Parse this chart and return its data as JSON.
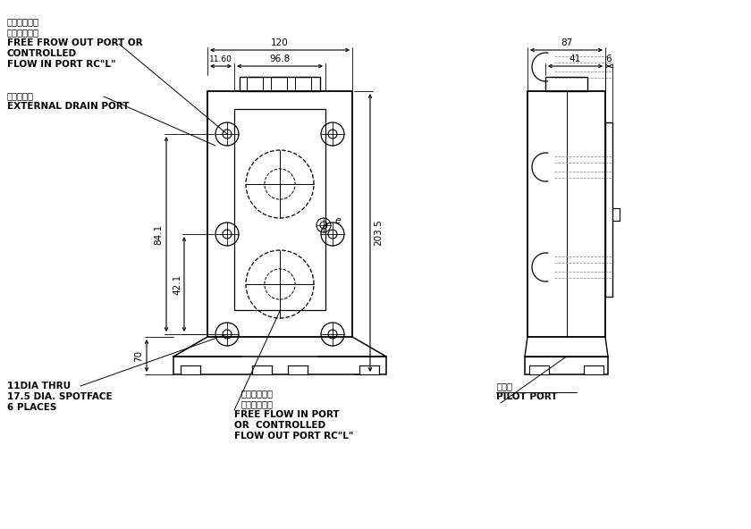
{
  "bg_color": "#ffffff",
  "line_color": "#000000",
  "fig_width": 8.4,
  "fig_height": 5.92,
  "dpi": 100,
  "annotations": {
    "tl_cn1": "自由油流出口",
    "tl_cn2": "控制油流入口",
    "tl_en1": "FREE FROW OUT PORT OR",
    "tl_en2": "CONTROLLED",
    "tl_en3": "FLOW IN PORT RC\"L\"",
    "drain_cn": "外部渡流口",
    "drain_en": "EXTERNAL DRAIN PORT",
    "bl1": "11DIA THRU",
    "bl2": "17.5 DIA. SPOTFACE",
    "bl3": "6 PLACES",
    "bm_cn1": "自由油流入口",
    "bm_cn2": "控制油流出口",
    "bm_en1": "FREE FLOW IN PORT",
    "bm_en2": "OR  CONTROLLED",
    "bm_en3": "FLOW OUT PORT RC\"L\"",
    "pilot_cn": "引導口",
    "pilot_en": "PILOT PORT",
    "d120": "120",
    "d96": "96.8",
    "d1160": "11.60",
    "d841": "84.1",
    "d421": "42.1",
    "d2035": "203.5",
    "d70": "70",
    "d87": "87",
    "d41": "41",
    "d6": "6"
  }
}
